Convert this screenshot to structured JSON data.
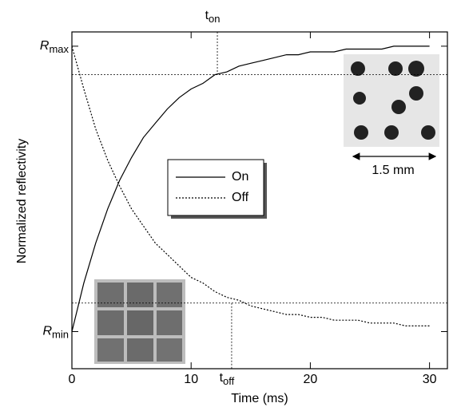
{
  "chart_data": {
    "type": "line",
    "x_label": "Time (ms)",
    "y_label": "Normalized reflectivity",
    "x": [
      0,
      1,
      2,
      3,
      4,
      5,
      6,
      7,
      8,
      9,
      10,
      11,
      12,
      13,
      14,
      15,
      16,
      17,
      18,
      19,
      20,
      21,
      22,
      23,
      24,
      25,
      26,
      27,
      28,
      29,
      30
    ],
    "series": [
      {
        "name": "On",
        "color": "#000000",
        "dash": "solid",
        "values": [
          0,
          0.17,
          0.31,
          0.43,
          0.53,
          0.61,
          0.68,
          0.73,
          0.78,
          0.82,
          0.85,
          0.87,
          0.9,
          0.91,
          0.93,
          0.94,
          0.95,
          0.96,
          0.97,
          0.97,
          0.98,
          0.98,
          0.98,
          0.99,
          0.99,
          0.99,
          0.99,
          1.0,
          1.0,
          1.0,
          1.0
        ]
      },
      {
        "name": "Off",
        "color": "#000000",
        "dash": "dotted",
        "values": [
          1,
          0.85,
          0.71,
          0.6,
          0.51,
          0.43,
          0.37,
          0.31,
          0.27,
          0.23,
          0.19,
          0.17,
          0.14,
          0.12,
          0.11,
          0.09,
          0.08,
          0.07,
          0.06,
          0.06,
          0.05,
          0.05,
          0.04,
          0.04,
          0.04,
          0.03,
          0.03,
          0.03,
          0.02,
          0.02,
          0.02
        ]
      }
    ],
    "xlim": [
      0,
      31.5
    ],
    "xticks": [
      0,
      10,
      20,
      30
    ],
    "ylim": [
      -0.13,
      1.05
    ],
    "yticks": [
      {
        "value": 1,
        "label": "Rmax"
      },
      {
        "value": 0,
        "label": "Rmin"
      }
    ],
    "reference_y": [
      0.9,
      0.1
    ],
    "annotations": [
      {
        "text": "ton",
        "x": 12.2,
        "from_y": 0.9
      },
      {
        "text": "toff",
        "x": 13.4,
        "from_y": 0.1
      }
    ],
    "inset_scale_label": "1.5 mm"
  }
}
